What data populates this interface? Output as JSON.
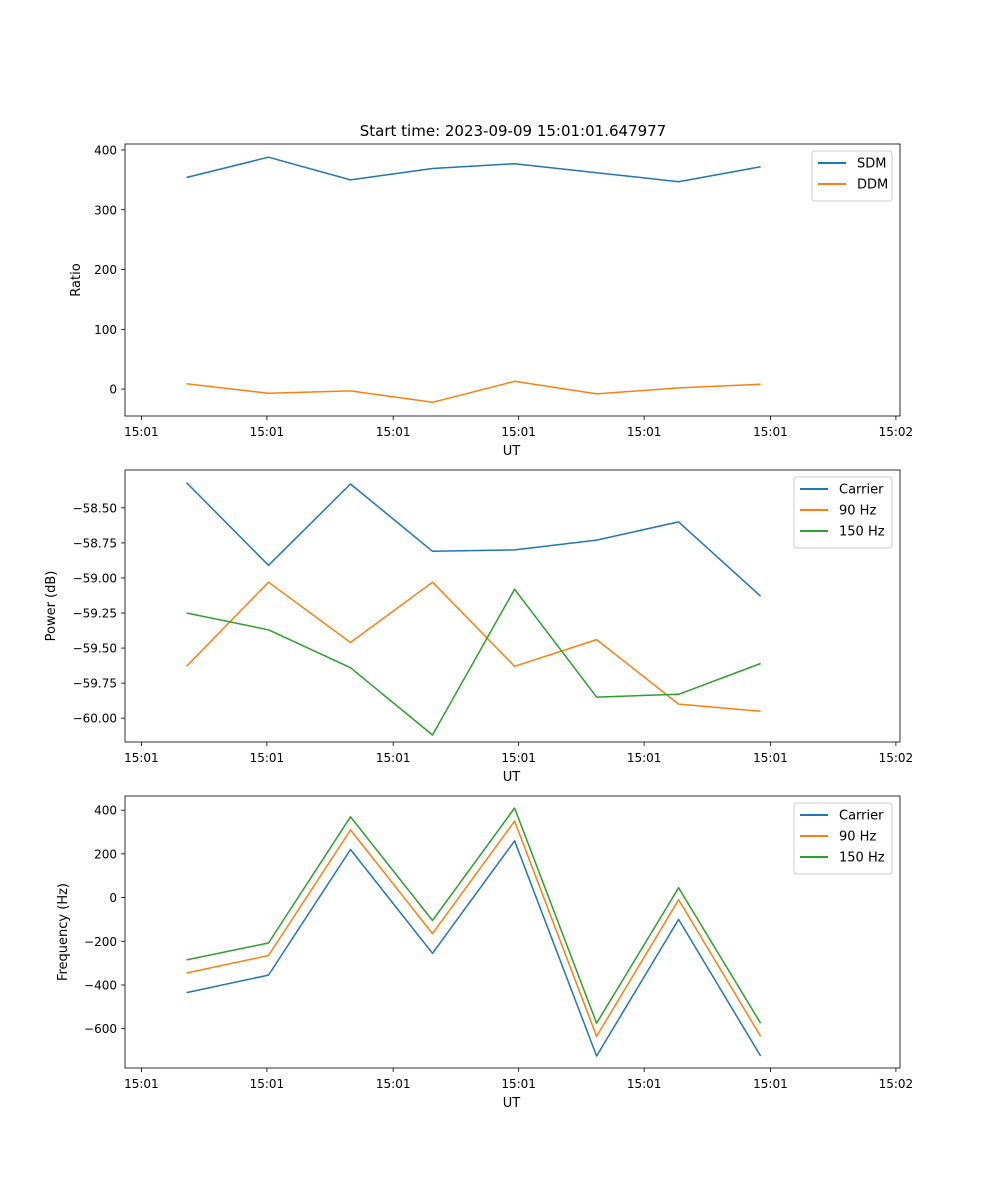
{
  "title": "Start time: 2023-09-09 15:01:01.647977",
  "colors": {
    "series_1": "#1f77b4",
    "series_2": "#ff7f0e",
    "series_3": "#2ca02c",
    "axes": "#000000",
    "legend_border": "#cccccc",
    "background": "#ffffff"
  },
  "chart_data": [
    {
      "type": "line",
      "title": "Start time: 2023-09-09 15:01:01.647977",
      "xlabel": "UT",
      "ylabel": "Ratio",
      "x": [
        1,
        2,
        3,
        4,
        5,
        6,
        7,
        8
      ],
      "xlim": [
        0.25,
        9.7
      ],
      "x_ticks": [
        0.45,
        1.98,
        3.52,
        5.05,
        6.58,
        8.12,
        9.65
      ],
      "x_tick_labels": [
        "15:01",
        "15:01",
        "15:01",
        "15:01",
        "15:01",
        "15:01",
        "15:02"
      ],
      "ylim": [
        -45,
        410
      ],
      "y_ticks": [
        0,
        100,
        200,
        300,
        400
      ],
      "y_tick_labels": [
        "0",
        "100",
        "200",
        "300",
        "400"
      ],
      "legend": "top-right",
      "series": [
        {
          "name": "SDM",
          "color": "#1f77b4",
          "values": [
            354,
            388,
            350,
            369,
            377,
            362,
            347,
            372
          ]
        },
        {
          "name": "DDM",
          "color": "#ff7f0e",
          "values": [
            9,
            -7,
            -3,
            -22,
            13,
            -8,
            2,
            8
          ]
        }
      ]
    },
    {
      "type": "line",
      "title": "",
      "xlabel": "UT",
      "ylabel": "Power (dB)",
      "x": [
        1,
        2,
        3,
        4,
        5,
        6,
        7,
        8
      ],
      "xlim": [
        0.25,
        9.7
      ],
      "x_ticks": [
        0.45,
        1.98,
        3.52,
        5.05,
        6.58,
        8.12,
        9.65
      ],
      "x_tick_labels": [
        "15:01",
        "15:01",
        "15:01",
        "15:01",
        "15:01",
        "15:01",
        "15:02"
      ],
      "ylim": [
        -60.17,
        -58.23
      ],
      "y_ticks": [
        -60.0,
        -59.75,
        -59.5,
        -59.25,
        -59.0,
        -58.75,
        -58.5
      ],
      "y_tick_labels": [
        "−60.00",
        "−59.75",
        "−59.50",
        "−59.25",
        "−59.00",
        "−58.75",
        "−58.50"
      ],
      "legend": "top-right",
      "series": [
        {
          "name": "Carrier",
          "color": "#1f77b4",
          "values": [
            -58.32,
            -58.91,
            -58.33,
            -58.81,
            -58.8,
            -58.73,
            -58.6,
            -59.13
          ]
        },
        {
          "name": "90 Hz",
          "color": "#ff7f0e",
          "values": [
            -59.63,
            -59.03,
            -59.46,
            -59.03,
            -59.63,
            -59.44,
            -59.9,
            -59.95
          ]
        },
        {
          "name": "150 Hz",
          "color": "#2ca02c",
          "values": [
            -59.25,
            -59.37,
            -59.64,
            -60.12,
            -59.08,
            -59.85,
            -59.83,
            -59.61
          ]
        }
      ]
    },
    {
      "type": "line",
      "title": "",
      "xlabel": "UT",
      "ylabel": "Frequency (Hz)",
      "x": [
        1,
        2,
        3,
        4,
        5,
        6,
        7,
        8
      ],
      "xlim": [
        0.25,
        9.7
      ],
      "x_ticks": [
        0.45,
        1.98,
        3.52,
        5.05,
        6.58,
        8.12,
        9.65
      ],
      "x_tick_labels": [
        "15:01",
        "15:01",
        "15:01",
        "15:01",
        "15:01",
        "15:01",
        "15:02"
      ],
      "ylim": [
        -780,
        465
      ],
      "y_ticks": [
        -600,
        -400,
        -200,
        0,
        200,
        400
      ],
      "y_tick_labels": [
        "−600",
        "−400",
        "−200",
        "0",
        "200",
        "400"
      ],
      "legend": "top-right",
      "series": [
        {
          "name": "Carrier",
          "color": "#1f77b4",
          "values": [
            -435,
            -355,
            220,
            -255,
            260,
            -725,
            -100,
            -725
          ]
        },
        {
          "name": "90 Hz",
          "color": "#ff7f0e",
          "values": [
            -345,
            -265,
            310,
            -165,
            350,
            -635,
            -10,
            -635
          ]
        },
        {
          "name": "150 Hz",
          "color": "#2ca02c",
          "values": [
            -285,
            -208,
            370,
            -105,
            410,
            -575,
            45,
            -575
          ]
        }
      ]
    }
  ]
}
